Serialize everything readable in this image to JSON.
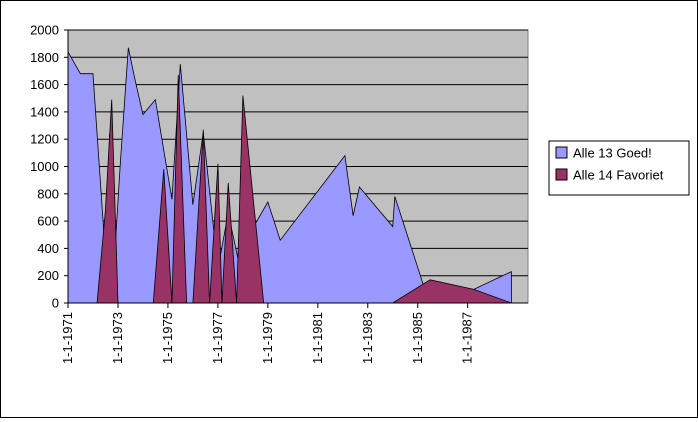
{
  "chart_data": {
    "type": "area",
    "title": "",
    "xlabel": "",
    "ylabel": "",
    "ylim": [
      0,
      2000
    ],
    "yticks": [
      0,
      200,
      400,
      600,
      800,
      1000,
      1200,
      1400,
      1600,
      1800,
      2000
    ],
    "xlim": [
      "1971-01-01",
      "1989-06-01"
    ],
    "xticks": [
      "1-1-1971",
      "1-1-1973",
      "1-1-1975",
      "1-1-1977",
      "1-1-1979",
      "1-1-1981",
      "1-1-1983",
      "1-1-1985",
      "1-1-1987"
    ],
    "grid": true,
    "plot_background": "#c0c0c0",
    "legend_position": "right",
    "series": [
      {
        "name": "Alle 13 Goed!",
        "color": "#9999ff",
        "points": [
          [
            "1971-01-01",
            0
          ],
          [
            "1971-01-01",
            1840
          ],
          [
            "1971-07-01",
            1680
          ],
          [
            "1972-01-01",
            1680
          ],
          [
            "1972-07-01",
            350
          ],
          [
            "1972-09-01",
            1240
          ],
          [
            "1972-11-01",
            250
          ],
          [
            "1973-02-01",
            1000
          ],
          [
            "1973-06-01",
            1870
          ],
          [
            "1973-09-01",
            1650
          ],
          [
            "1974-01-01",
            1380
          ],
          [
            "1974-07-01",
            1490
          ],
          [
            "1975-03-01",
            760
          ],
          [
            "1975-07-01",
            1750
          ],
          [
            "1976-01-01",
            720
          ],
          [
            "1976-06-01",
            1250
          ],
          [
            "1977-01-01",
            250
          ],
          [
            "1977-06-01",
            660
          ],
          [
            "1977-11-01",
            300
          ],
          [
            "1978-01-01",
            700
          ],
          [
            "1978-04-01",
            500
          ],
          [
            "1979-01-01",
            740
          ],
          [
            "1979-07-01",
            460
          ],
          [
            "1982-02-01",
            1080
          ],
          [
            "1982-06-01",
            640
          ],
          [
            "1982-09-01",
            850
          ],
          [
            "1984-01-01",
            560
          ],
          [
            "1984-02-01",
            780
          ],
          [
            "1985-04-01",
            120
          ],
          [
            "1987-04-01",
            100
          ],
          [
            "1988-10-01",
            230
          ],
          [
            "1988-10-01",
            0
          ]
        ]
      },
      {
        "name": "Alle 14 Favoriet",
        "color": "#993366",
        "points": [
          [
            "1972-03-01",
            0
          ],
          [
            "1972-07-01",
            680
          ],
          [
            "1972-10-01",
            1490
          ],
          [
            "1973-01-01",
            0
          ],
          [
            "1974-06-01",
            0
          ],
          [
            "1974-11-01",
            980
          ],
          [
            "1975-03-01",
            0
          ],
          [
            "1975-06-01",
            1670
          ],
          [
            "1975-10-01",
            0
          ],
          [
            "1976-01-01",
            0
          ],
          [
            "1976-06-01",
            1270
          ],
          [
            "1976-09-01",
            0
          ],
          [
            "1977-01-01",
            1020
          ],
          [
            "1977-03-01",
            0
          ],
          [
            "1977-06-01",
            880
          ],
          [
            "1977-10-01",
            0
          ],
          [
            "1978-01-01",
            1520
          ],
          [
            "1978-11-01",
            0
          ],
          [
            "1984-01-01",
            0
          ],
          [
            "1985-07-01",
            170
          ],
          [
            "1987-04-01",
            100
          ],
          [
            "1988-10-01",
            0
          ]
        ]
      }
    ]
  }
}
